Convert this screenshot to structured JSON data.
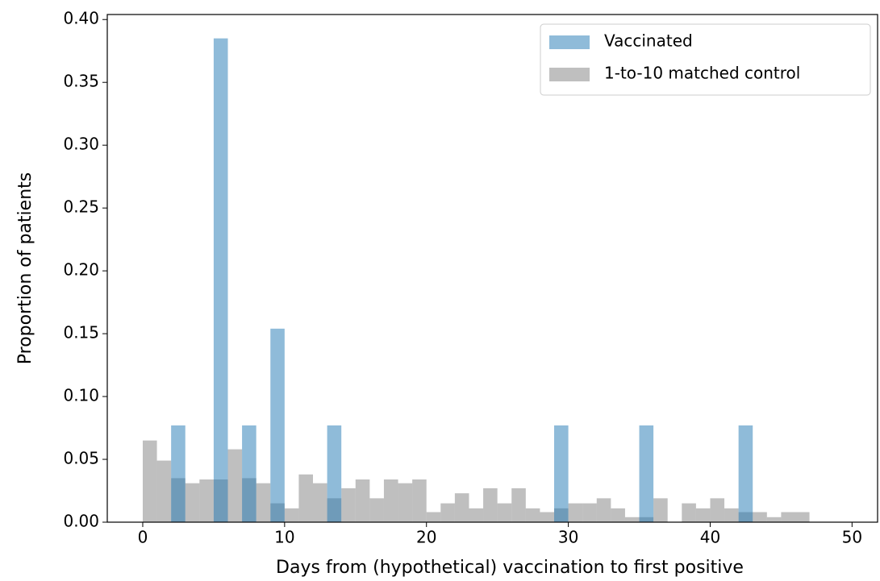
{
  "chart_data": {
    "type": "histogram",
    "xlabel": "Days from (hypothetical) vaccination to first positive",
    "ylabel": "Proportion of patients",
    "xlim": [
      -2.5,
      51.8
    ],
    "ylim": [
      0,
      0.404
    ],
    "xticks": [
      0,
      10,
      20,
      30,
      40,
      50
    ],
    "yticks": [
      {
        "value": 0,
        "label": "0.00"
      },
      {
        "value": 0.05,
        "label": "0.05"
      },
      {
        "value": 0.1,
        "label": "0.10"
      },
      {
        "value": 0.15,
        "label": "0.15"
      },
      {
        "value": 0.2,
        "label": "0.20"
      },
      {
        "value": 0.25,
        "label": "0.25"
      },
      {
        "value": 0.3,
        "label": "0.30"
      },
      {
        "value": 0.35,
        "label": "0.35"
      },
      {
        "value": 0.4,
        "label": "0.40"
      }
    ],
    "legend": "upper right",
    "series": [
      {
        "name": "Vaccinated",
        "color": "#1f77b4",
        "bins": [
          2,
          3,
          4,
          5,
          6,
          7,
          8,
          9,
          10,
          11,
          12,
          13,
          14,
          15,
          16,
          17,
          18,
          19,
          20,
          21,
          22,
          23,
          24,
          25,
          26,
          27,
          28,
          29,
          30,
          31,
          32,
          33,
          34,
          35,
          36,
          37,
          38,
          39,
          40,
          41,
          42,
          43
        ],
        "values": [
          0.077,
          0,
          0,
          0.385,
          0,
          0.077,
          0,
          0.154,
          0,
          0,
          0,
          0.077,
          0,
          0,
          0,
          0,
          0,
          0,
          0,
          0,
          0,
          0,
          0,
          0,
          0,
          0,
          0,
          0.077,
          0,
          0,
          0,
          0,
          0,
          0.077,
          0,
          0,
          0,
          0,
          0,
          0,
          0.077
        ]
      },
      {
        "name": "1-to-10 matched control",
        "color": "#808080",
        "bins": [
          0,
          1,
          2,
          3,
          4,
          5,
          6,
          7,
          8,
          9,
          10,
          11,
          12,
          13,
          14,
          15,
          16,
          17,
          18,
          19,
          20,
          21,
          22,
          23,
          24,
          25,
          26,
          27,
          28,
          29,
          30,
          31,
          32,
          33,
          34,
          35,
          36,
          37,
          38,
          39,
          40,
          41,
          42,
          43,
          44,
          45,
          46,
          47
        ],
        "values": [
          0.065,
          0.049,
          0.035,
          0.031,
          0.034,
          0.034,
          0.058,
          0.035,
          0.031,
          0.015,
          0.011,
          0.038,
          0.031,
          0.019,
          0.027,
          0.034,
          0.019,
          0.034,
          0.031,
          0.034,
          0.008,
          0.015,
          0.023,
          0.011,
          0.027,
          0.015,
          0.027,
          0.011,
          0.008,
          0.011,
          0.015,
          0.015,
          0.019,
          0.011,
          0.004,
          0.004,
          0.019,
          0,
          0.015,
          0.011,
          0.019,
          0.011,
          0.008,
          0.008,
          0.004,
          0.008,
          0.008
        ]
      }
    ]
  }
}
